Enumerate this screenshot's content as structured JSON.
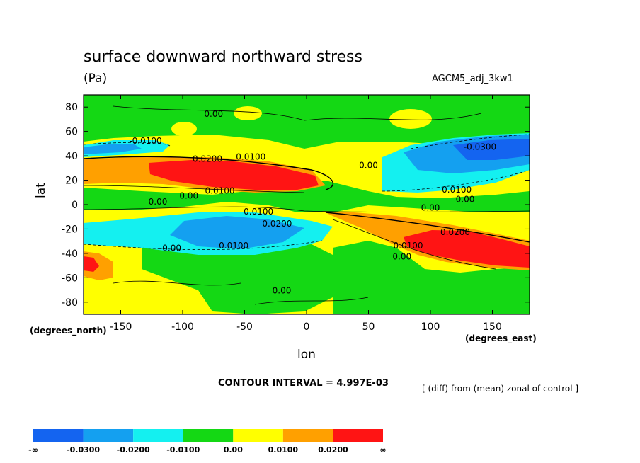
{
  "header": {
    "title": "surface downward northward stress",
    "units": "(Pa)",
    "run_label": "AGCM5_adj_3kw1"
  },
  "footer": {
    "contour_interval": "CONTOUR INTERVAL = 4.997E-03",
    "diff_note": "[ (diff) from (mean) zonal of control ]"
  },
  "chart_data": {
    "type": "filled-contour",
    "title": "surface downward northward stress",
    "subtitle": "(Pa)",
    "xlabel": "lon",
    "ylabel": "lat",
    "x_units": "(degrees_east)",
    "y_units": "(degrees_north)",
    "xlim": [
      -180,
      180
    ],
    "ylim": [
      -90,
      90
    ],
    "x_ticks": [
      -150,
      -100,
      -50,
      0,
      50,
      100,
      150
    ],
    "y_ticks": [
      80,
      60,
      40,
      20,
      0,
      -20,
      -40,
      -60,
      -80
    ],
    "contour_interval": 0.004997,
    "colorbar": {
      "levels": [
        "-∞",
        "-0.0300",
        "-0.0200",
        "-0.0100",
        "0.00",
        "0.0100",
        "0.0200",
        "∞"
      ],
      "colors": [
        "#1464f0",
        "#14a0f0",
        "#14f0f0",
        "#14d814",
        "#ffff00",
        "#ffa000",
        "#ff1414"
      ]
    },
    "contour_labels": [
      {
        "text": "0.00",
        "lon": -75,
        "lat": 72
      },
      {
        "text": "-0.0100",
        "lon": -130,
        "lat": 50
      },
      {
        "text": "0.0200",
        "lon": -80,
        "lat": 35
      },
      {
        "text": "0.0100",
        "lon": -45,
        "lat": 37
      },
      {
        "text": "0.0100",
        "lon": -70,
        "lat": 9
      },
      {
        "text": "0.00",
        "lon": -95,
        "lat": 5
      },
      {
        "text": "0.00",
        "lon": -120,
        "lat": 0
      },
      {
        "text": "-0.0100",
        "lon": -40,
        "lat": -8
      },
      {
        "text": "-0.0200",
        "lon": -25,
        "lat": -18
      },
      {
        "text": "-0.00",
        "lon": -110,
        "lat": -38
      },
      {
        "text": "-0.0100",
        "lon": -60,
        "lat": -36
      },
      {
        "text": "0.00",
        "lon": -20,
        "lat": -73
      },
      {
        "text": "0.00",
        "lon": 50,
        "lat": 30
      },
      {
        "text": "-0.0300",
        "lon": 140,
        "lat": 45
      },
      {
        "text": "-0.0100",
        "lon": 120,
        "lat": 10
      },
      {
        "text": "0.00",
        "lon": 128,
        "lat": 2
      },
      {
        "text": "0.00",
        "lon": 100,
        "lat": -5
      },
      {
        "text": "0.0200",
        "lon": 120,
        "lat": -25
      },
      {
        "text": "0.0100",
        "lon": 82,
        "lat": -36
      },
      {
        "text": "0.00",
        "lon": 77,
        "lat": -45
      }
    ]
  }
}
